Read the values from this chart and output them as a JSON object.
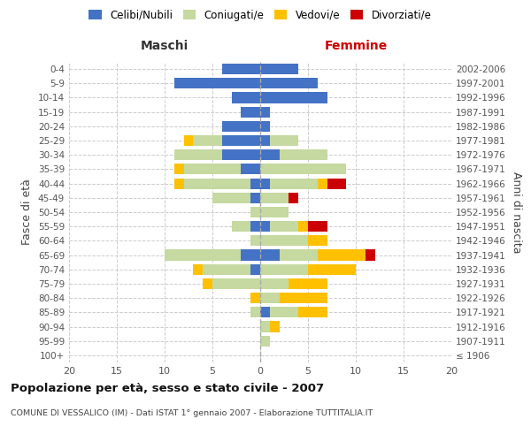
{
  "age_groups": [
    "100+",
    "95-99",
    "90-94",
    "85-89",
    "80-84",
    "75-79",
    "70-74",
    "65-69",
    "60-64",
    "55-59",
    "50-54",
    "45-49",
    "40-44",
    "35-39",
    "30-34",
    "25-29",
    "20-24",
    "15-19",
    "10-14",
    "5-9",
    "0-4"
  ],
  "birth_years": [
    "≤ 1906",
    "1907-1911",
    "1912-1916",
    "1917-1921",
    "1922-1926",
    "1927-1931",
    "1932-1936",
    "1937-1941",
    "1942-1946",
    "1947-1951",
    "1952-1956",
    "1957-1961",
    "1962-1966",
    "1967-1971",
    "1972-1976",
    "1977-1981",
    "1982-1986",
    "1987-1991",
    "1992-1996",
    "1997-2001",
    "2002-2006"
  ],
  "colors": {
    "celibi": "#4472c4",
    "coniugati": "#c5d9a0",
    "vedovi": "#ffc000",
    "divorziati": "#cc0000"
  },
  "male": {
    "celibi": [
      0,
      0,
      0,
      0,
      0,
      0,
      1,
      2,
      0,
      1,
      0,
      1,
      1,
      2,
      4,
      4,
      4,
      2,
      3,
      9,
      4
    ],
    "coniugati": [
      0,
      0,
      0,
      1,
      0,
      5,
      5,
      8,
      1,
      2,
      1,
      4,
      7,
      6,
      5,
      3,
      0,
      0,
      0,
      0,
      0
    ],
    "vedovi": [
      0,
      0,
      0,
      0,
      1,
      1,
      1,
      0,
      0,
      0,
      0,
      0,
      1,
      1,
      0,
      1,
      0,
      0,
      0,
      0,
      0
    ],
    "divorziati": [
      0,
      0,
      0,
      0,
      0,
      0,
      0,
      0,
      0,
      0,
      0,
      0,
      0,
      0,
      0,
      0,
      0,
      0,
      0,
      0,
      0
    ]
  },
  "female": {
    "celibi": [
      0,
      0,
      0,
      1,
      0,
      0,
      0,
      2,
      0,
      1,
      0,
      0,
      1,
      0,
      2,
      1,
      1,
      1,
      7,
      6,
      4
    ],
    "coniugati": [
      0,
      1,
      1,
      3,
      2,
      3,
      5,
      4,
      5,
      3,
      3,
      3,
      5,
      9,
      5,
      3,
      0,
      0,
      0,
      0,
      0
    ],
    "vedovi": [
      0,
      0,
      1,
      3,
      5,
      4,
      5,
      5,
      2,
      1,
      0,
      0,
      1,
      0,
      0,
      0,
      0,
      0,
      0,
      0,
      0
    ],
    "divorziati": [
      0,
      0,
      0,
      0,
      0,
      0,
      0,
      1,
      0,
      2,
      0,
      1,
      2,
      0,
      0,
      0,
      0,
      0,
      0,
      0,
      0
    ]
  },
  "xlim": 20,
  "title": "Popolazione per età, sesso e stato civile - 2007",
  "subtitle": "COMUNE DI VESSALICO (IM) - Dati ISTAT 1° gennaio 2007 - Elaborazione TUTTITALIA.IT",
  "ylabel_left": "Fasce di età",
  "ylabel_right": "Anni di nascita",
  "header_male": "Maschi",
  "header_female": "Femmine",
  "legend_labels": [
    "Celibi/Nubili",
    "Coniugati/e",
    "Vedovi/e",
    "Divorziati/e"
  ],
  "bg_color": "#ffffff",
  "grid_color": "#cccccc"
}
